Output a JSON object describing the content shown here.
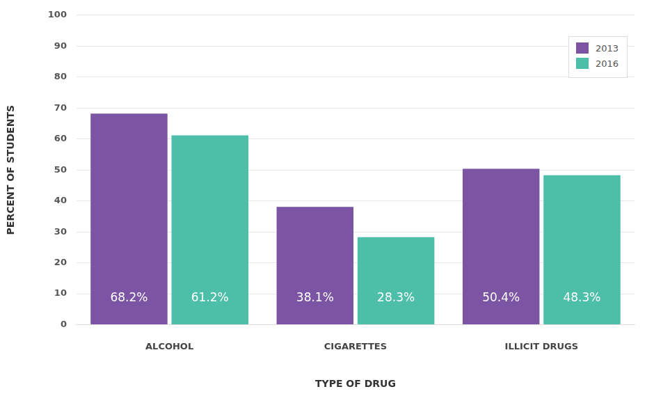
{
  "chart_data": {
    "type": "bar",
    "x_label": "TYPE OF DRUG",
    "y_label": "PERCENT OF STUDENTS",
    "categories": [
      "ALCOHOL",
      "CIGARETTES",
      "ILLICIT DRUGS"
    ],
    "series": [
      {
        "name": "2013",
        "color": "#7b54a3",
        "values": [
          68.2,
          38.1,
          50.4
        ],
        "value_labels": [
          "68.2%",
          "38.1%",
          "50.4%"
        ]
      },
      {
        "name": "2016",
        "color": "#4dbfa9",
        "values": [
          61.2,
          28.3,
          48.3
        ],
        "value_labels": [
          "61.2%",
          "28.3%",
          "48.3%"
        ]
      }
    ],
    "ylim": [
      0,
      100
    ],
    "yticks": [
      0,
      10,
      20,
      30,
      40,
      50,
      60,
      70,
      80,
      90,
      100
    ],
    "grid": true,
    "legend": "upper right",
    "data_labels": true
  }
}
